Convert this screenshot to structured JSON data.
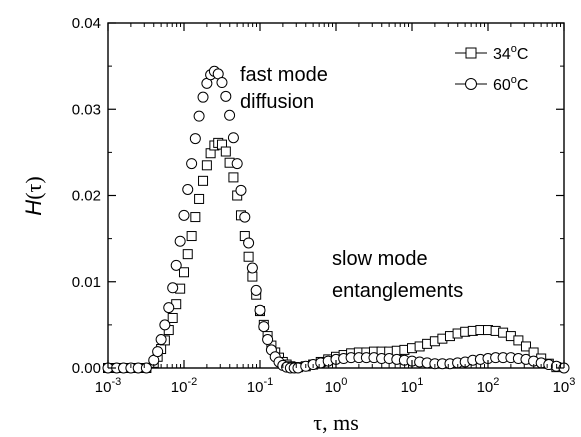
{
  "chart_data": {
    "type": "scatter",
    "x_scale": "log",
    "xlim": [
      0.001,
      1000
    ],
    "ylim": [
      0,
      0.04
    ],
    "x_ticks": [
      {
        "base": "10",
        "exp": "-3"
      },
      {
        "base": "10",
        "exp": "-2"
      },
      {
        "base": "10",
        "exp": "-1"
      },
      {
        "base": "10",
        "exp": "0"
      },
      {
        "base": "10",
        "exp": "1"
      },
      {
        "base": "10",
        "exp": "2"
      },
      {
        "base": "10",
        "exp": "3"
      }
    ],
    "y_ticks": [
      "0.00",
      "0.01",
      "0.02",
      "0.03",
      "0.04"
    ],
    "y_tick_values": [
      0,
      0.01,
      0.02,
      0.03,
      0.04
    ],
    "xlabel": "τ, ms",
    "ylabel_italic": "H",
    "ylabel_rest": "(τ)",
    "legend": {
      "placement": "top-right",
      "entries": [
        {
          "label_main": "34",
          "label_sup": "o",
          "label_unit": "C",
          "marker": "square"
        },
        {
          "label_main": "60",
          "label_sup": "o",
          "label_unit": "C",
          "marker": "circle"
        }
      ]
    },
    "annotations": [
      {
        "lines": [
          "fast mode",
          "diffusion"
        ]
      },
      {
        "lines": [
          "slow mode",
          "entanglements"
        ]
      }
    ],
    "series": [
      {
        "name": "34°C",
        "marker": "square",
        "points": [
          [
            0.001,
            0
          ],
          [
            0.0013,
            0
          ],
          [
            0.0016,
            0
          ],
          [
            0.002,
            0
          ],
          [
            0.0025,
            0
          ],
          [
            0.0032,
            0
          ],
          [
            0.004,
            0.0006
          ],
          [
            0.0045,
            0.0013
          ],
          [
            0.005,
            0.0022
          ],
          [
            0.0056,
            0.0032
          ],
          [
            0.0063,
            0.0044
          ],
          [
            0.0071,
            0.0058
          ],
          [
            0.0079,
            0.0074
          ],
          [
            0.0089,
            0.0092
          ],
          [
            0.01,
            0.0111
          ],
          [
            0.0112,
            0.0132
          ],
          [
            0.0126,
            0.0153
          ],
          [
            0.0141,
            0.0175
          ],
          [
            0.0158,
            0.0196
          ],
          [
            0.0178,
            0.0217
          ],
          [
            0.02,
            0.0235
          ],
          [
            0.0224,
            0.0249
          ],
          [
            0.0251,
            0.0258
          ],
          [
            0.0282,
            0.0261
          ],
          [
            0.0316,
            0.0259
          ],
          [
            0.0355,
            0.0251
          ],
          [
            0.0398,
            0.0238
          ],
          [
            0.0447,
            0.0221
          ],
          [
            0.0501,
            0.02
          ],
          [
            0.0562,
            0.0177
          ],
          [
            0.0631,
            0.0153
          ],
          [
            0.0708,
            0.0129
          ],
          [
            0.0794,
            0.0106
          ],
          [
            0.0891,
            0.0085
          ],
          [
            0.1,
            0.0066
          ],
          [
            0.1122,
            0.005
          ],
          [
            0.1259,
            0.0037
          ],
          [
            0.1413,
            0.0026
          ],
          [
            0.1585,
            0.0018
          ],
          [
            0.1778,
            0.0012
          ],
          [
            0.1995,
            0.0007
          ],
          [
            0.2239,
            0.0004
          ],
          [
            0.2512,
            0.0002
          ],
          [
            0.2818,
            0.0001
          ],
          [
            0.3162,
            0.0001
          ],
          [
            0.4,
            0.0002
          ],
          [
            0.5,
            0.0004
          ],
          [
            0.63,
            0.0007
          ],
          [
            0.79,
            0.001
          ],
          [
            1.0,
            0.0013
          ],
          [
            1.26,
            0.0015
          ],
          [
            1.58,
            0.0017
          ],
          [
            2.0,
            0.0018
          ],
          [
            2.51,
            0.0018
          ],
          [
            3.16,
            0.0019
          ],
          [
            3.98,
            0.0019
          ],
          [
            5.01,
            0.0019
          ],
          [
            6.31,
            0.002
          ],
          [
            7.94,
            0.0021
          ],
          [
            10,
            0.0023
          ],
          [
            12.6,
            0.0025
          ],
          [
            15.8,
            0.0028
          ],
          [
            20,
            0.0031
          ],
          [
            25.1,
            0.0034
          ],
          [
            31.6,
            0.0037
          ],
          [
            39.8,
            0.004
          ],
          [
            50.1,
            0.0042
          ],
          [
            63.1,
            0.0043
          ],
          [
            79.4,
            0.0044
          ],
          [
            100,
            0.0044
          ],
          [
            126,
            0.0043
          ],
          [
            158,
            0.0041
          ],
          [
            200,
            0.0037
          ],
          [
            251,
            0.0032
          ],
          [
            316,
            0.0025
          ],
          [
            398,
            0.0018
          ],
          [
            501,
            0.0011
          ],
          [
            631,
            0.0005
          ],
          [
            794,
            0.0001
          ]
        ]
      },
      {
        "name": "60°C",
        "marker": "circle",
        "points": [
          [
            0.001,
            0
          ],
          [
            0.0013,
            0
          ],
          [
            0.0016,
            0
          ],
          [
            0.002,
            0
          ],
          [
            0.0025,
            0
          ],
          [
            0.0032,
            0
          ],
          [
            0.004,
            0.0009
          ],
          [
            0.0045,
            0.0019
          ],
          [
            0.005,
            0.0033
          ],
          [
            0.0056,
            0.005
          ],
          [
            0.0063,
            0.007
          ],
          [
            0.0071,
            0.0093
          ],
          [
            0.0079,
            0.0119
          ],
          [
            0.0089,
            0.0147
          ],
          [
            0.01,
            0.0177
          ],
          [
            0.0112,
            0.0207
          ],
          [
            0.0126,
            0.0237
          ],
          [
            0.0141,
            0.0266
          ],
          [
            0.0158,
            0.0292
          ],
          [
            0.0178,
            0.0314
          ],
          [
            0.02,
            0.033
          ],
          [
            0.0224,
            0.034
          ],
          [
            0.0251,
            0.0344
          ],
          [
            0.0282,
            0.0341
          ],
          [
            0.0316,
            0.0331
          ],
          [
            0.0355,
            0.0315
          ],
          [
            0.0398,
            0.0293
          ],
          [
            0.0447,
            0.0267
          ],
          [
            0.0501,
            0.0237
          ],
          [
            0.0562,
            0.0206
          ],
          [
            0.0631,
            0.0175
          ],
          [
            0.0708,
            0.0145
          ],
          [
            0.0794,
            0.0116
          ],
          [
            0.0891,
            0.009
          ],
          [
            0.1,
            0.0067
          ],
          [
            0.1122,
            0.0048
          ],
          [
            0.1259,
            0.0033
          ],
          [
            0.1413,
            0.0021
          ],
          [
            0.1585,
            0.0013
          ],
          [
            0.1778,
            0.0007
          ],
          [
            0.1995,
            0.0003
          ],
          [
            0.2239,
            0.0001
          ],
          [
            0.2512,
            0
          ],
          [
            0.2818,
            0
          ],
          [
            0.3162,
            0
          ],
          [
            0.4,
            0.0002
          ],
          [
            0.5,
            0.0004
          ],
          [
            0.63,
            0.0006
          ],
          [
            0.79,
            0.0008
          ],
          [
            1.0,
            0.001
          ],
          [
            1.26,
            0.0011
          ],
          [
            1.58,
            0.0012
          ],
          [
            2.0,
            0.0012
          ],
          [
            2.51,
            0.0012
          ],
          [
            3.16,
            0.0012
          ],
          [
            3.98,
            0.0011
          ],
          [
            5.01,
            0.0011
          ],
          [
            6.31,
            0.001
          ],
          [
            7.94,
            0.0009
          ],
          [
            10,
            0.0008
          ],
          [
            12.6,
            0.0007
          ],
          [
            15.8,
            0.0006
          ],
          [
            20,
            0.0005
          ],
          [
            25.1,
            0.0005
          ],
          [
            31.6,
            0.0005
          ],
          [
            39.8,
            0.0006
          ],
          [
            50.1,
            0.0007
          ],
          [
            63.1,
            0.0009
          ],
          [
            79.4,
            0.001
          ],
          [
            100,
            0.0011
          ],
          [
            126,
            0.0012
          ],
          [
            158,
            0.0012
          ],
          [
            200,
            0.0012
          ],
          [
            251,
            0.0011
          ],
          [
            316,
            0.001
          ],
          [
            398,
            0.0008
          ],
          [
            501,
            0.0006
          ],
          [
            631,
            0.0004
          ],
          [
            794,
            0.0002
          ],
          [
            1000,
            0
          ]
        ]
      }
    ]
  }
}
